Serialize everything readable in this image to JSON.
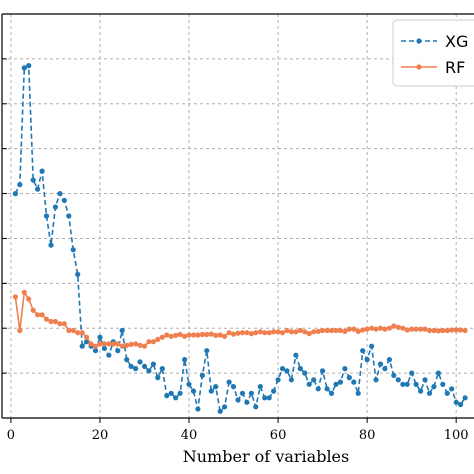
{
  "chart_data": {
    "type": "line",
    "title": "",
    "xlabel": "Number of variables",
    "ylabel": "",
    "xlim": [
      -2,
      104
    ],
    "ylim": [
      0,
      9
    ],
    "xticks": [
      0,
      20,
      40,
      60,
      80,
      100
    ],
    "xtick_labels": [
      "0",
      "20",
      "40",
      "60",
      "80",
      "100"
    ],
    "ygrid": [
      1,
      2,
      3,
      4,
      5,
      6,
      7,
      8
    ],
    "grid": true,
    "legend_position": "top-right",
    "series": [
      {
        "name": "XG",
        "color": "#1f77b4",
        "linestyle": "dashed",
        "x": [
          1,
          2,
          3,
          4,
          5,
          6,
          7,
          8,
          9,
          10,
          11,
          12,
          13,
          14,
          15,
          16,
          17,
          18,
          19,
          20,
          21,
          22,
          23,
          24,
          25,
          26,
          27,
          28,
          29,
          30,
          31,
          32,
          33,
          34,
          35,
          36,
          37,
          38,
          39,
          40,
          41,
          42,
          43,
          44,
          45,
          46,
          47,
          48,
          49,
          50,
          51,
          52,
          53,
          54,
          55,
          56,
          57,
          58,
          59,
          60,
          61,
          62,
          63,
          64,
          65,
          66,
          67,
          68,
          69,
          70,
          71,
          72,
          73,
          74,
          75,
          76,
          77,
          78,
          79,
          80,
          81,
          82,
          83,
          84,
          85,
          86,
          87,
          88,
          89,
          90,
          91,
          92,
          93,
          94,
          95,
          96,
          97,
          98,
          99,
          100,
          101,
          102
        ],
        "y": [
          5.0,
          5.2,
          7.8,
          7.85,
          5.3,
          5.1,
          5.5,
          4.5,
          3.85,
          4.7,
          5.0,
          4.85,
          4.5,
          3.75,
          3.2,
          1.6,
          1.7,
          1.6,
          1.5,
          1.8,
          1.55,
          1.4,
          1.7,
          1.5,
          1.95,
          1.3,
          1.15,
          1.1,
          1.25,
          1.15,
          1.05,
          1.2,
          0.9,
          1.1,
          0.5,
          0.55,
          0.45,
          0.55,
          1.3,
          0.75,
          0.6,
          0.2,
          0.95,
          1.5,
          0.6,
          0.7,
          0.15,
          0.25,
          0.8,
          0.7,
          0.4,
          0.55,
          0.35,
          0.55,
          0.25,
          0.7,
          0.45,
          0.45,
          0.6,
          0.85,
          1.1,
          1.05,
          0.85,
          1.4,
          1.1,
          1.0,
          0.75,
          0.85,
          0.65,
          1.05,
          0.65,
          0.55,
          0.75,
          0.8,
          1.1,
          0.9,
          0.8,
          0.55,
          1.5,
          1.3,
          1.6,
          0.85,
          1.2,
          1.1,
          1.3,
          0.95,
          0.85,
          0.75,
          0.75,
          1.0,
          0.75,
          0.6,
          0.85,
          0.55,
          0.7,
          1.0,
          0.75,
          0.55,
          0.65,
          0.35,
          0.3,
          0.45
        ]
      },
      {
        "name": "RF",
        "color": "#f07f4f",
        "linestyle": "solid",
        "x": [
          1,
          2,
          3,
          4,
          5,
          6,
          7,
          8,
          9,
          10,
          11,
          12,
          13,
          14,
          15,
          16,
          17,
          18,
          19,
          20,
          21,
          22,
          23,
          24,
          25,
          26,
          27,
          28,
          29,
          30,
          31,
          32,
          33,
          34,
          35,
          36,
          37,
          38,
          39,
          40,
          41,
          42,
          43,
          44,
          45,
          46,
          47,
          48,
          49,
          50,
          51,
          52,
          53,
          54,
          55,
          56,
          57,
          58,
          59,
          60,
          61,
          62,
          63,
          64,
          65,
          66,
          67,
          68,
          69,
          70,
          71,
          72,
          73,
          74,
          75,
          76,
          77,
          78,
          79,
          80,
          81,
          82,
          83,
          84,
          85,
          86,
          87,
          88,
          89,
          90,
          91,
          92,
          93,
          94,
          95,
          96,
          97,
          98,
          99,
          100,
          101,
          102
        ],
        "y": [
          2.7,
          1.95,
          2.8,
          2.65,
          2.4,
          2.3,
          2.3,
          2.2,
          2.15,
          2.15,
          2.1,
          2.1,
          1.95,
          1.95,
          1.9,
          1.9,
          1.8,
          1.65,
          1.6,
          1.65,
          1.65,
          1.65,
          1.65,
          1.65,
          1.6,
          1.62,
          1.64,
          1.65,
          1.62,
          1.6,
          1.7,
          1.7,
          1.75,
          1.8,
          1.85,
          1.82,
          1.84,
          1.86,
          1.82,
          1.85,
          1.85,
          1.85,
          1.86,
          1.86,
          1.87,
          1.84,
          1.85,
          1.82,
          1.9,
          1.87,
          1.89,
          1.9,
          1.9,
          1.88,
          1.9,
          1.92,
          1.9,
          1.9,
          1.92,
          1.92,
          1.9,
          1.95,
          1.92,
          1.92,
          1.95,
          1.92,
          1.88,
          1.92,
          1.93,
          1.95,
          1.95,
          1.95,
          1.95,
          1.95,
          1.93,
          1.98,
          1.98,
          1.93,
          1.96,
          1.98,
          2.0,
          1.98,
          2.0,
          1.98,
          2.0,
          2.05,
          2.02,
          2.0,
          1.96,
          1.98,
          1.98,
          1.98,
          1.98,
          1.95,
          1.95,
          1.94,
          1.95,
          1.95,
          1.96,
          1.96,
          1.96,
          1.95
        ]
      }
    ]
  }
}
